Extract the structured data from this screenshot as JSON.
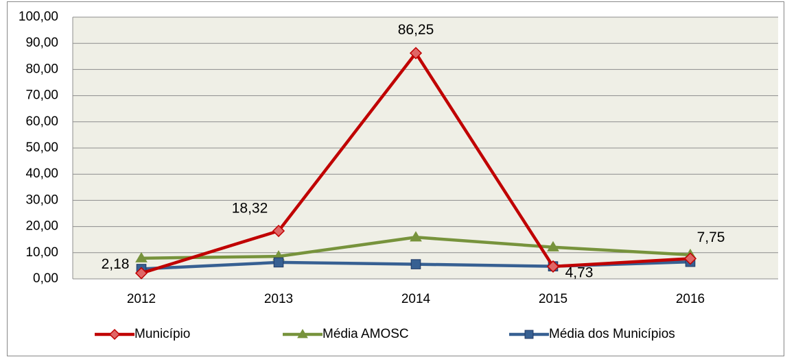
{
  "chart_data": {
    "type": "line",
    "categories": [
      "2012",
      "2013",
      "2014",
      "2015",
      "2016"
    ],
    "series": [
      {
        "name": "Município",
        "color": "#c00000",
        "marker": "diamond",
        "values": [
          2.18,
          18.32,
          86.25,
          4.73,
          7.75
        ],
        "value_labels": [
          "2,18",
          "18,32",
          "86,25",
          "4,73",
          "7,75"
        ]
      },
      {
        "name": "Média AMOSC",
        "color": "#77933c",
        "marker": "triangle",
        "values": [
          7.9,
          8.6,
          15.9,
          12.1,
          9.2
        ]
      },
      {
        "name": "Média dos Municípios",
        "color": "#376092",
        "marker": "square",
        "values": [
          3.8,
          6.3,
          5.6,
          4.8,
          6.5
        ]
      }
    ],
    "ylim": [
      0,
      100
    ],
    "yticks": [
      {
        "value": 0,
        "label": "0,00"
      },
      {
        "value": 10,
        "label": "10,00"
      },
      {
        "value": 20,
        "label": "20,00"
      },
      {
        "value": 30,
        "label": "30,00"
      },
      {
        "value": 40,
        "label": "40,00"
      },
      {
        "value": 50,
        "label": "50,00"
      },
      {
        "value": 60,
        "label": "60,00"
      },
      {
        "value": 70,
        "label": "70,00"
      },
      {
        "value": 80,
        "label": "80,00"
      },
      {
        "value": 90,
        "label": "90,00"
      },
      {
        "value": 100,
        "label": "100,00"
      }
    ],
    "grid": true,
    "legend": "bottom"
  }
}
